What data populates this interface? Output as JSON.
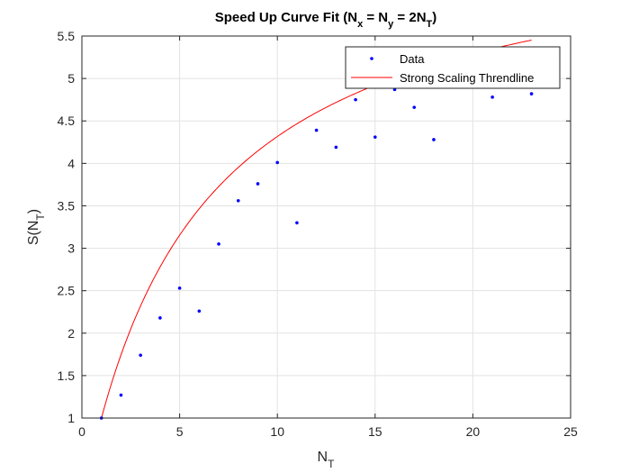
{
  "chart_data": {
    "type": "scatter",
    "title": {
      "main": "Speed Up Curve Fit (N",
      "sub1": "x",
      "mid1": " = N",
      "sub2": "y",
      "mid2": " = 2N",
      "sub3": "T",
      "end": ")"
    },
    "xlabel": {
      "main": "N",
      "sub": "T"
    },
    "ylabel": {
      "main": "S(N",
      "sub": "T",
      "end": ")"
    },
    "xlim": [
      0,
      25
    ],
    "ylim": [
      1,
      5.5
    ],
    "xticks": [
      "0",
      "5",
      "10",
      "15",
      "20",
      "25"
    ],
    "yticks": [
      "1",
      "1.5",
      "2",
      "2.5",
      "3",
      "3.5",
      "4",
      "4.5",
      "5",
      "5.5"
    ],
    "grid": true,
    "legend_position": "top-right",
    "series": [
      {
        "name": "Data",
        "kind": "points",
        "color": "#0000ff",
        "x": [
          1,
          2,
          3,
          4,
          5,
          6,
          7,
          8,
          9,
          10,
          11,
          12,
          13,
          14,
          15,
          16,
          17,
          18,
          21,
          23
        ],
        "y": [
          1.0,
          1.27,
          1.74,
          2.18,
          2.53,
          2.26,
          3.05,
          3.56,
          3.76,
          4.01,
          3.3,
          4.39,
          4.19,
          4.75,
          4.31,
          4.87,
          4.66,
          4.28,
          4.78,
          4.82
        ]
      },
      {
        "name": "Strong Scaling Threndline",
        "kind": "line",
        "color": "#ff0000",
        "amdahl_serial_fraction": 0.1463
      }
    ]
  }
}
